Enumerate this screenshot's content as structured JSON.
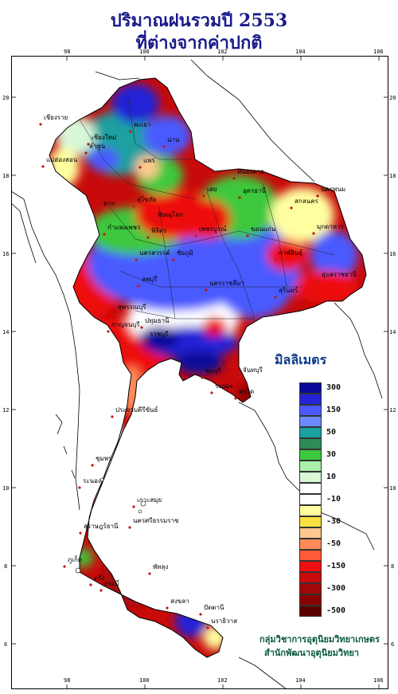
{
  "title": {
    "line1": "ปริมาณฝนรวมปี  2553",
    "line2": "ที่ต่างจากค่าปกติ"
  },
  "axes": {
    "lon_ticks": [
      "98",
      "100",
      "102",
      "104",
      "106"
    ],
    "lat_ticks": [
      "20",
      "18",
      "16",
      "14",
      "12",
      "10",
      "8",
      "6"
    ]
  },
  "legend": {
    "title": "มิลลิเมตร",
    "levels": [
      {
        "label": "300",
        "color": "#0a0a9a"
      },
      {
        "label": "",
        "color": "#2424d6"
      },
      {
        "label": "150",
        "color": "#4a5aff"
      },
      {
        "label": "",
        "color": "#6a8aff"
      },
      {
        "label": "50",
        "color": "#1aa0a0"
      },
      {
        "label": "",
        "color": "#2e8b57"
      },
      {
        "label": "30",
        "color": "#3cc83c"
      },
      {
        "label": "",
        "color": "#a8f0a8"
      },
      {
        "label": "10",
        "color": "#d8f8d8"
      },
      {
        "label": "",
        "color": "#ffffff"
      },
      {
        "label": "-10",
        "color": "#ffffff"
      },
      {
        "label": "",
        "color": "#ffffa0"
      },
      {
        "label": "-30",
        "color": "#f8e040"
      },
      {
        "label": "",
        "color": "#ffc890"
      },
      {
        "label": "-50",
        "color": "#ff8c5a"
      },
      {
        "label": "",
        "color": "#ff5a3a"
      },
      {
        "label": "-150",
        "color": "#ee1010"
      },
      {
        "label": "",
        "color": "#c80a0a"
      },
      {
        "label": "-300",
        "color": "#a00808"
      },
      {
        "label": "",
        "color": "#8a0000"
      },
      {
        "label": "-500",
        "color": "#5a0000"
      }
    ]
  },
  "credits": {
    "line1": "กลุ่มวิชาการอุตุนิยมวิทยาเกษตร",
    "line2": "สำนักพัฒนาอุตุนิยมวิทยา"
  },
  "places": [
    {
      "name": "เชียงราย"
    },
    {
      "name": "แม่ฮ่องสอน"
    },
    {
      "name": "เชียงใหม่"
    },
    {
      "name": "ลำพูน"
    },
    {
      "name": "พะเยา"
    },
    {
      "name": "น่าน"
    },
    {
      "name": "แพร่"
    },
    {
      "name": "ตาก"
    },
    {
      "name": "สุโขทัย"
    },
    {
      "name": "พิษณุโลก"
    },
    {
      "name": "กำแพงเพชร"
    },
    {
      "name": "พิจิตร"
    },
    {
      "name": "เพชรบูรณ์"
    },
    {
      "name": "นครสวรรค์"
    },
    {
      "name": "ชัยภูมิ"
    },
    {
      "name": "เลย"
    },
    {
      "name": "อุดรธานี"
    },
    {
      "name": "หนองคาย"
    },
    {
      "name": "นครพนม"
    },
    {
      "name": "สกลนคร"
    },
    {
      "name": "มุกดาหาร"
    },
    {
      "name": "ขอนแก่น"
    },
    {
      "name": "กาฬสินธุ์"
    },
    {
      "name": "อุบลราชธานี"
    },
    {
      "name": "นครราชสีมา"
    },
    {
      "name": "สุรินทร์"
    },
    {
      "name": "ลพบุรี"
    },
    {
      "name": "กาญจนบุรี"
    },
    {
      "name": "สุพรรณบุรี"
    },
    {
      "name": "ปทุมธานี"
    },
    {
      "name": "ราชบุรี"
    },
    {
      "name": "ชลบุรี"
    },
    {
      "name": "ระยอง"
    },
    {
      "name": "จันทบุรี"
    },
    {
      "name": "ตราด"
    },
    {
      "name": "ประจวบคีรีขันธ์"
    },
    {
      "name": "ชุมพร"
    },
    {
      "name": "ระนอง"
    },
    {
      "name": "สุราษฎร์ธานี"
    },
    {
      "name": "นครศรีธรรมราช"
    },
    {
      "name": "ภูเก็ต"
    },
    {
      "name": "กระบี่"
    },
    {
      "name": "ตรัง"
    },
    {
      "name": "พัทลุง"
    },
    {
      "name": "สงขลา"
    },
    {
      "name": "ปัตตานี"
    },
    {
      "name": "นราธิวาส"
    },
    {
      "name": "เกาะสมุย"
    }
  ]
}
